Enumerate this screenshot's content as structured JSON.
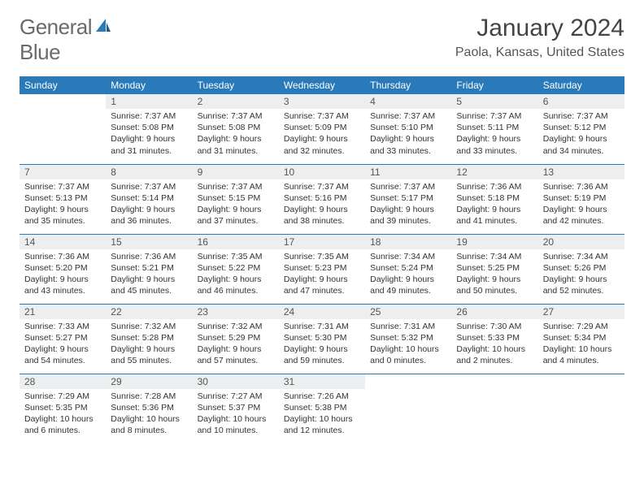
{
  "logo": {
    "word1": "General",
    "word2": "Blue"
  },
  "title": "January 2024",
  "location": "Paola, Kansas, United States",
  "colors": {
    "header_bg": "#2a7ab9",
    "header_text": "#ffffff",
    "daynum_bg": "#eceeef",
    "border": "#2a7ab9",
    "logo_gray": "#6a6a6a",
    "logo_blue": "#2a7ab9"
  },
  "day_names": [
    "Sunday",
    "Monday",
    "Tuesday",
    "Wednesday",
    "Thursday",
    "Friday",
    "Saturday"
  ],
  "weeks": [
    [
      {
        "n": "",
        "l1": "",
        "l2": "",
        "l3": "",
        "l4": "",
        "empty": true
      },
      {
        "n": "1",
        "l1": "Sunrise: 7:37 AM",
        "l2": "Sunset: 5:08 PM",
        "l3": "Daylight: 9 hours",
        "l4": "and 31 minutes."
      },
      {
        "n": "2",
        "l1": "Sunrise: 7:37 AM",
        "l2": "Sunset: 5:08 PM",
        "l3": "Daylight: 9 hours",
        "l4": "and 31 minutes."
      },
      {
        "n": "3",
        "l1": "Sunrise: 7:37 AM",
        "l2": "Sunset: 5:09 PM",
        "l3": "Daylight: 9 hours",
        "l4": "and 32 minutes."
      },
      {
        "n": "4",
        "l1": "Sunrise: 7:37 AM",
        "l2": "Sunset: 5:10 PM",
        "l3": "Daylight: 9 hours",
        "l4": "and 33 minutes."
      },
      {
        "n": "5",
        "l1": "Sunrise: 7:37 AM",
        "l2": "Sunset: 5:11 PM",
        "l3": "Daylight: 9 hours",
        "l4": "and 33 minutes."
      },
      {
        "n": "6",
        "l1": "Sunrise: 7:37 AM",
        "l2": "Sunset: 5:12 PM",
        "l3": "Daylight: 9 hours",
        "l4": "and 34 minutes."
      }
    ],
    [
      {
        "n": "7",
        "l1": "Sunrise: 7:37 AM",
        "l2": "Sunset: 5:13 PM",
        "l3": "Daylight: 9 hours",
        "l4": "and 35 minutes."
      },
      {
        "n": "8",
        "l1": "Sunrise: 7:37 AM",
        "l2": "Sunset: 5:14 PM",
        "l3": "Daylight: 9 hours",
        "l4": "and 36 minutes."
      },
      {
        "n": "9",
        "l1": "Sunrise: 7:37 AM",
        "l2": "Sunset: 5:15 PM",
        "l3": "Daylight: 9 hours",
        "l4": "and 37 minutes."
      },
      {
        "n": "10",
        "l1": "Sunrise: 7:37 AM",
        "l2": "Sunset: 5:16 PM",
        "l3": "Daylight: 9 hours",
        "l4": "and 38 minutes."
      },
      {
        "n": "11",
        "l1": "Sunrise: 7:37 AM",
        "l2": "Sunset: 5:17 PM",
        "l3": "Daylight: 9 hours",
        "l4": "and 39 minutes."
      },
      {
        "n": "12",
        "l1": "Sunrise: 7:36 AM",
        "l2": "Sunset: 5:18 PM",
        "l3": "Daylight: 9 hours",
        "l4": "and 41 minutes."
      },
      {
        "n": "13",
        "l1": "Sunrise: 7:36 AM",
        "l2": "Sunset: 5:19 PM",
        "l3": "Daylight: 9 hours",
        "l4": "and 42 minutes."
      }
    ],
    [
      {
        "n": "14",
        "l1": "Sunrise: 7:36 AM",
        "l2": "Sunset: 5:20 PM",
        "l3": "Daylight: 9 hours",
        "l4": "and 43 minutes."
      },
      {
        "n": "15",
        "l1": "Sunrise: 7:36 AM",
        "l2": "Sunset: 5:21 PM",
        "l3": "Daylight: 9 hours",
        "l4": "and 45 minutes."
      },
      {
        "n": "16",
        "l1": "Sunrise: 7:35 AM",
        "l2": "Sunset: 5:22 PM",
        "l3": "Daylight: 9 hours",
        "l4": "and 46 minutes."
      },
      {
        "n": "17",
        "l1": "Sunrise: 7:35 AM",
        "l2": "Sunset: 5:23 PM",
        "l3": "Daylight: 9 hours",
        "l4": "and 47 minutes."
      },
      {
        "n": "18",
        "l1": "Sunrise: 7:34 AM",
        "l2": "Sunset: 5:24 PM",
        "l3": "Daylight: 9 hours",
        "l4": "and 49 minutes."
      },
      {
        "n": "19",
        "l1": "Sunrise: 7:34 AM",
        "l2": "Sunset: 5:25 PM",
        "l3": "Daylight: 9 hours",
        "l4": "and 50 minutes."
      },
      {
        "n": "20",
        "l1": "Sunrise: 7:34 AM",
        "l2": "Sunset: 5:26 PM",
        "l3": "Daylight: 9 hours",
        "l4": "and 52 minutes."
      }
    ],
    [
      {
        "n": "21",
        "l1": "Sunrise: 7:33 AM",
        "l2": "Sunset: 5:27 PM",
        "l3": "Daylight: 9 hours",
        "l4": "and 54 minutes."
      },
      {
        "n": "22",
        "l1": "Sunrise: 7:32 AM",
        "l2": "Sunset: 5:28 PM",
        "l3": "Daylight: 9 hours",
        "l4": "and 55 minutes."
      },
      {
        "n": "23",
        "l1": "Sunrise: 7:32 AM",
        "l2": "Sunset: 5:29 PM",
        "l3": "Daylight: 9 hours",
        "l4": "and 57 minutes."
      },
      {
        "n": "24",
        "l1": "Sunrise: 7:31 AM",
        "l2": "Sunset: 5:30 PM",
        "l3": "Daylight: 9 hours",
        "l4": "and 59 minutes."
      },
      {
        "n": "25",
        "l1": "Sunrise: 7:31 AM",
        "l2": "Sunset: 5:32 PM",
        "l3": "Daylight: 10 hours",
        "l4": "and 0 minutes."
      },
      {
        "n": "26",
        "l1": "Sunrise: 7:30 AM",
        "l2": "Sunset: 5:33 PM",
        "l3": "Daylight: 10 hours",
        "l4": "and 2 minutes."
      },
      {
        "n": "27",
        "l1": "Sunrise: 7:29 AM",
        "l2": "Sunset: 5:34 PM",
        "l3": "Daylight: 10 hours",
        "l4": "and 4 minutes."
      }
    ],
    [
      {
        "n": "28",
        "l1": "Sunrise: 7:29 AM",
        "l2": "Sunset: 5:35 PM",
        "l3": "Daylight: 10 hours",
        "l4": "and 6 minutes."
      },
      {
        "n": "29",
        "l1": "Sunrise: 7:28 AM",
        "l2": "Sunset: 5:36 PM",
        "l3": "Daylight: 10 hours",
        "l4": "and 8 minutes."
      },
      {
        "n": "30",
        "l1": "Sunrise: 7:27 AM",
        "l2": "Sunset: 5:37 PM",
        "l3": "Daylight: 10 hours",
        "l4": "and 10 minutes."
      },
      {
        "n": "31",
        "l1": "Sunrise: 7:26 AM",
        "l2": "Sunset: 5:38 PM",
        "l3": "Daylight: 10 hours",
        "l4": "and 12 minutes."
      },
      {
        "n": "",
        "l1": "",
        "l2": "",
        "l3": "",
        "l4": "",
        "empty": true
      },
      {
        "n": "",
        "l1": "",
        "l2": "",
        "l3": "",
        "l4": "",
        "empty": true
      },
      {
        "n": "",
        "l1": "",
        "l2": "",
        "l3": "",
        "l4": "",
        "empty": true
      }
    ]
  ]
}
